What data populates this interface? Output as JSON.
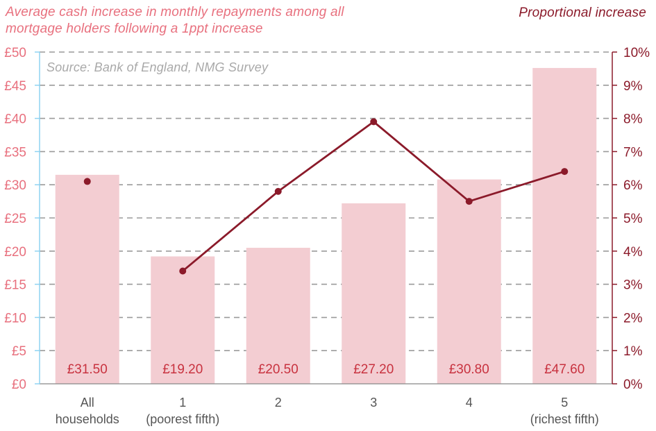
{
  "chart_data": {
    "type": "bar",
    "title": "Average cash increase in monthly repayments among all mortgage holders following a 1ppt increase",
    "right_axis_title": "Proportional increase",
    "source_note": "Source: Bank of England, NMG Survey",
    "categories": [
      [
        "All",
        "households"
      ],
      [
        "1",
        "(poorest fifth)"
      ],
      [
        "2",
        ""
      ],
      [
        "3",
        ""
      ],
      [
        "4",
        ""
      ],
      [
        "5",
        "(richest fifth)"
      ]
    ],
    "series": [
      {
        "name": "Average cash increase (£)",
        "type": "bar",
        "axis": "left",
        "values": [
          31.5,
          19.2,
          20.5,
          27.2,
          30.8,
          47.6
        ],
        "labels": [
          "£31.50",
          "£19.20",
          "£20.50",
          "£27.20",
          "£30.80",
          "£47.60"
        ],
        "color": "#f3cdd2"
      },
      {
        "name": "Proportional increase (%)",
        "type": "line",
        "axis": "right",
        "values": [
          6.1,
          3.4,
          5.8,
          7.9,
          5.5,
          6.4
        ],
        "connected_from_index": 1,
        "color": "#8b1a2a"
      }
    ],
    "left_axis": {
      "ylim": [
        0,
        50
      ],
      "ticks": [
        0,
        5,
        10,
        15,
        20,
        25,
        30,
        35,
        40,
        45,
        50
      ],
      "tick_labels": [
        "£0",
        "£5",
        "£10",
        "£15",
        "£20",
        "£25",
        "£30",
        "£35",
        "£40",
        "£45",
        "£50"
      ],
      "color": "#e8707e",
      "line_color": "#8fd3f2"
    },
    "right_axis": {
      "ylim": [
        0,
        10
      ],
      "ticks": [
        0,
        1,
        2,
        3,
        4,
        5,
        6,
        7,
        8,
        9,
        10
      ],
      "tick_labels": [
        "0%",
        "1%",
        "2%",
        "3%",
        "4%",
        "5%",
        "6%",
        "7%",
        "8%",
        "9%",
        "10%"
      ],
      "color": "#8b1a2a"
    },
    "grid": true,
    "grid_style": "dashed",
    "bar_label_color": "#c8323f",
    "category_label_color": "#555555"
  }
}
